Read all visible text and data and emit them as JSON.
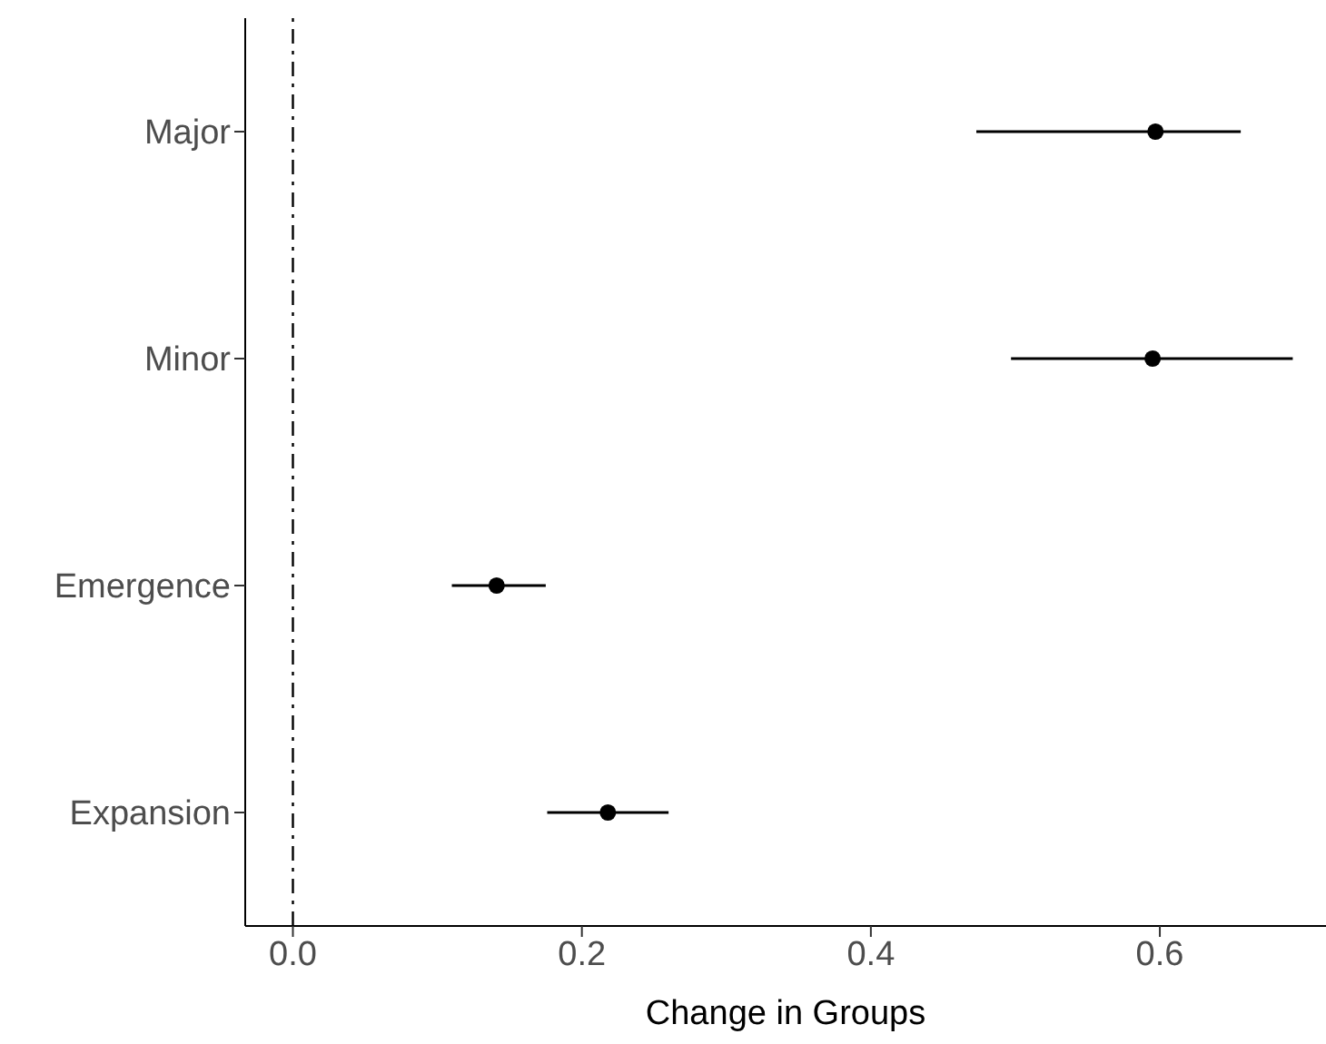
{
  "chart_data": {
    "type": "scatter",
    "orientation": "horizontal",
    "xlabel": "Change in Groups",
    "categories": [
      "Major",
      "Minor",
      "Emergence",
      "Expansion"
    ],
    "values": [
      0.597,
      0.595,
      0.141,
      0.218
    ],
    "errors": [
      [
        0.473,
        0.656
      ],
      [
        0.497,
        0.692
      ],
      [
        0.11,
        0.175
      ],
      [
        0.176,
        0.26
      ]
    ],
    "color": "#000000",
    "marker": "circle",
    "xlim": [
      -0.033,
      0.715
    ],
    "xticks": [
      {
        "value": 0,
        "label": "0.0"
      },
      0.2,
      0.4,
      0.6
    ],
    "ref_lines": [
      {
        "axis": "x",
        "value": 0,
        "color": "#000000",
        "line_style": "dashed"
      }
    ],
    "grid": false,
    "legend": false
  }
}
